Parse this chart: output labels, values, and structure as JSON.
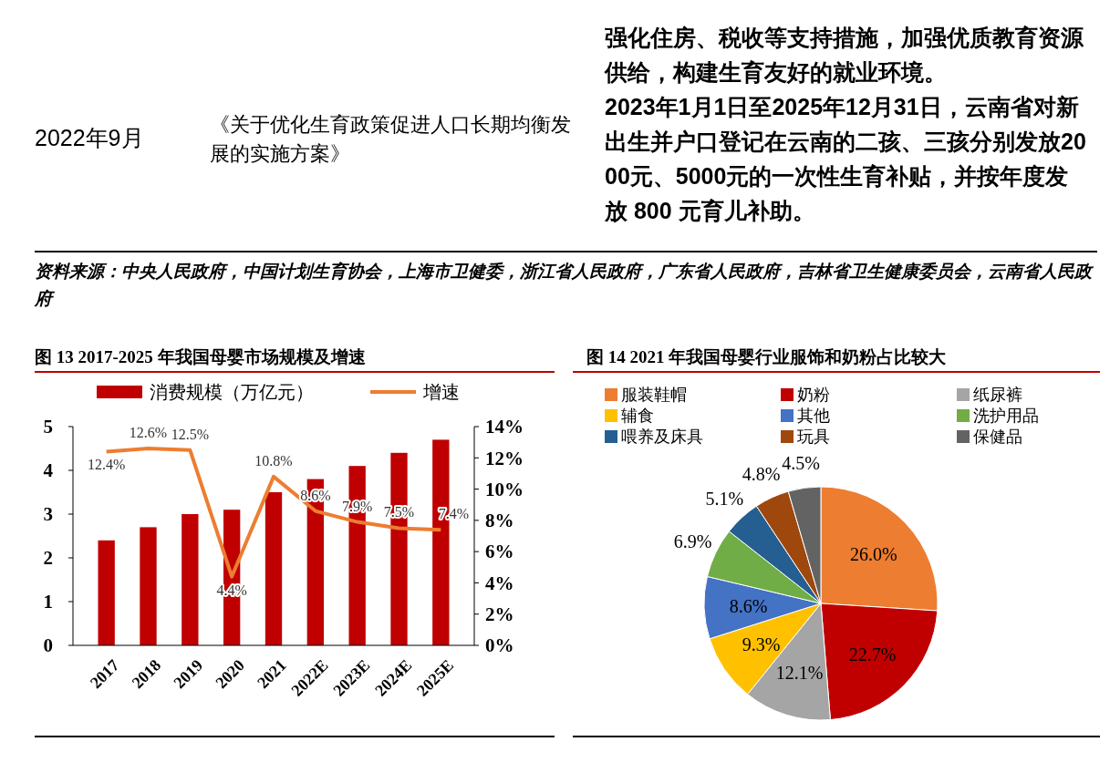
{
  "chart_data": [
    {
      "type": "other",
      "annotations": [
        "2022年9月",
        "《关于优化生育政策促进人口长期均衡发展的实施方案》",
        "强化住房、税收等支持措施，加强优质教育资源供给，构建生育友好的就业环境。",
        "2023年1月1日至2025年12月31日，云南省对新出生并户口登记在云南的二孩、三孩分别发放2000元、5000元的一次性生育补贴，并按年度发放 800 元育儿补助。",
        "资料来源：中央人民政府，中国计划生育协会，上海市卫健委，浙江省人民政府，广东省人民政府，吉林省卫生健康委员会，云南省人民政府"
      ]
    },
    {
      "type": "bar",
      "title": "图 13 2017-2025 年我国母婴市场规模及增速",
      "categories": [
        "2017",
        "2018",
        "2019",
        "2020",
        "2021",
        "2022E",
        "2023E",
        "2024E",
        "2025E"
      ],
      "series": [
        {
          "name": "消费规模（万亿元）",
          "color": "#c00000",
          "values": [
            2.4,
            2.7,
            3.0,
            3.1,
            3.5,
            3.8,
            4.1,
            4.4,
            4.7
          ]
        },
        {
          "name": "增速",
          "type": "line",
          "axis": "y2",
          "color": "#ed7d31",
          "values": [
            12.4,
            12.6,
            12.5,
            4.4,
            10.8,
            8.6,
            7.9,
            7.5,
            7.4
          ],
          "value_labels": [
            "12.4%",
            "12.6%",
            "12.5%",
            "4.4%",
            "10.8%",
            "8.6%",
            "7.9%",
            "7.5%",
            "7.4%"
          ]
        }
      ],
      "ylim": [
        0,
        5
      ],
      "yticks": [
        0,
        1,
        2,
        3,
        4,
        5
      ],
      "y2lim": [
        0,
        14
      ],
      "y2ticks": [
        {
          "value": 0,
          "label": "0%"
        },
        {
          "value": 2,
          "label": "2%"
        },
        {
          "value": 4,
          "label": "4%"
        },
        {
          "value": 6,
          "label": "6%"
        },
        {
          "value": 8,
          "label": "8%"
        },
        {
          "value": 10,
          "label": "10%"
        },
        {
          "value": 12,
          "label": "12%"
        },
        {
          "value": 14,
          "label": "14%"
        }
      ],
      "legend": "top",
      "marker": "none"
    },
    {
      "type": "pie",
      "title": "图 14 2021 年我国母婴行业服饰和奶粉占比较大",
      "categories": [
        "服装鞋帽",
        "奶粉",
        "纸尿裤",
        "辅食",
        "其他",
        "洗护用品",
        "喂养及床具",
        "玩具",
        "保健品"
      ],
      "values": [
        26.0,
        22.7,
        12.1,
        9.3,
        8.6,
        6.9,
        5.1,
        4.8,
        4.5
      ],
      "colors": [
        "#ed7d31",
        "#c00000",
        "#a5a5a5",
        "#ffc000",
        "#4472c4",
        "#70ad47",
        "#255e91",
        "#9e480e",
        "#636363"
      ],
      "value_labels": [
        "26.0%",
        "22.7%",
        "12.1%",
        "9.3%",
        "8.6%",
        "6.9%",
        "5.1%",
        "4.8%",
        "4.5%"
      ],
      "legend": "top"
    }
  ]
}
